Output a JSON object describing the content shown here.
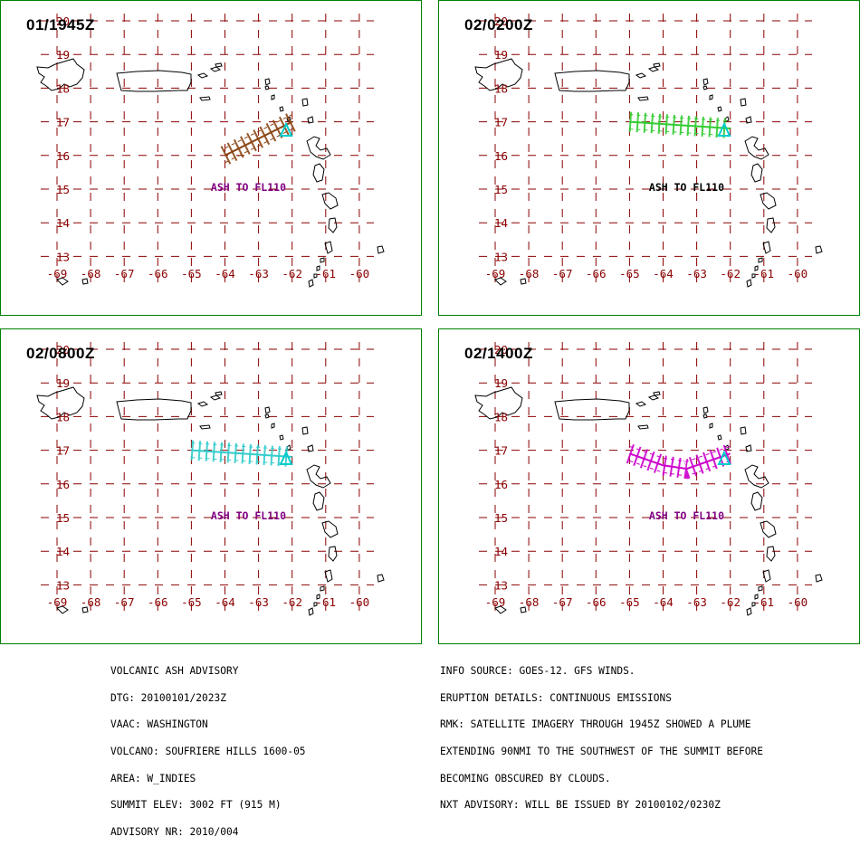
{
  "panels": [
    {
      "time": "01/1945Z",
      "ash_label": "ASH TO FL110",
      "ash_color": "#8B4513",
      "label_color": "#800080",
      "plume": [
        [
          -64.0,
          16.0
        ],
        [
          -62.0,
          17.0
        ]
      ]
    },
    {
      "time": "02/0200Z",
      "ash_label": "ASH TO FL110",
      "ash_color": "#33CC33",
      "label_color": "#000000",
      "plume": [
        [
          -65.0,
          17.0
        ],
        [
          -62.0,
          16.8
        ]
      ]
    },
    {
      "time": "02/0800Z",
      "ash_label": "ASH TO FL110",
      "ash_color": "#33CCCC",
      "label_color": "#800080",
      "plume": [
        [
          -65.0,
          17.0
        ],
        [
          -62.0,
          16.8
        ]
      ]
    },
    {
      "time": "02/1400Z",
      "ash_label": "ASH TO FL110",
      "ash_color": "#CC00CC",
      "label_color": "#800080",
      "plume": [
        [
          -65.0,
          16.9
        ],
        [
          -64.0,
          16.55
        ],
        [
          -63.3,
          16.45
        ],
        [
          -62.0,
          16.9
        ]
      ]
    }
  ],
  "grid": {
    "lat_labels": [
      "20",
      "19",
      "18",
      "17",
      "16",
      "15",
      "14",
      "13"
    ],
    "lon_labels": [
      "-69",
      "-68",
      "-67",
      "-66",
      "-65",
      "-64",
      "-63",
      "-62",
      "-61",
      "-60"
    ],
    "grid_color": "#8B0000",
    "frame_color": "#008000",
    "volcano_color": "#00CCCC"
  },
  "advisory_left": [
    "VOLCANIC ASH ADVISORY",
    "DTG: 20100101/2023Z",
    "VAAC: WASHINGTON",
    "VOLCANO: SOUFRIERE HILLS 1600-05",
    "AREA: W_INDIES",
    "SUMMIT ELEV: 3002 FT (915 M)",
    "ADVISORY NR: 2010/004"
  ],
  "advisory_right": [
    "INFO SOURCE: GOES-12. GFS WINDS.",
    "ERUPTION DETAILS: CONTINUOUS EMISSIONS",
    "RMK: SATELLITE IMAGERY THROUGH 1945Z SHOWED A PLUME",
    "EXTENDING 90NMI TO THE SOUTHWEST OF THE SUMMIT BEFORE",
    "BECOMING OBSCURED BY CLOUDS.",
    "NXT ADVISORY: WILL BE ISSUED BY 20100102/0230Z"
  ]
}
